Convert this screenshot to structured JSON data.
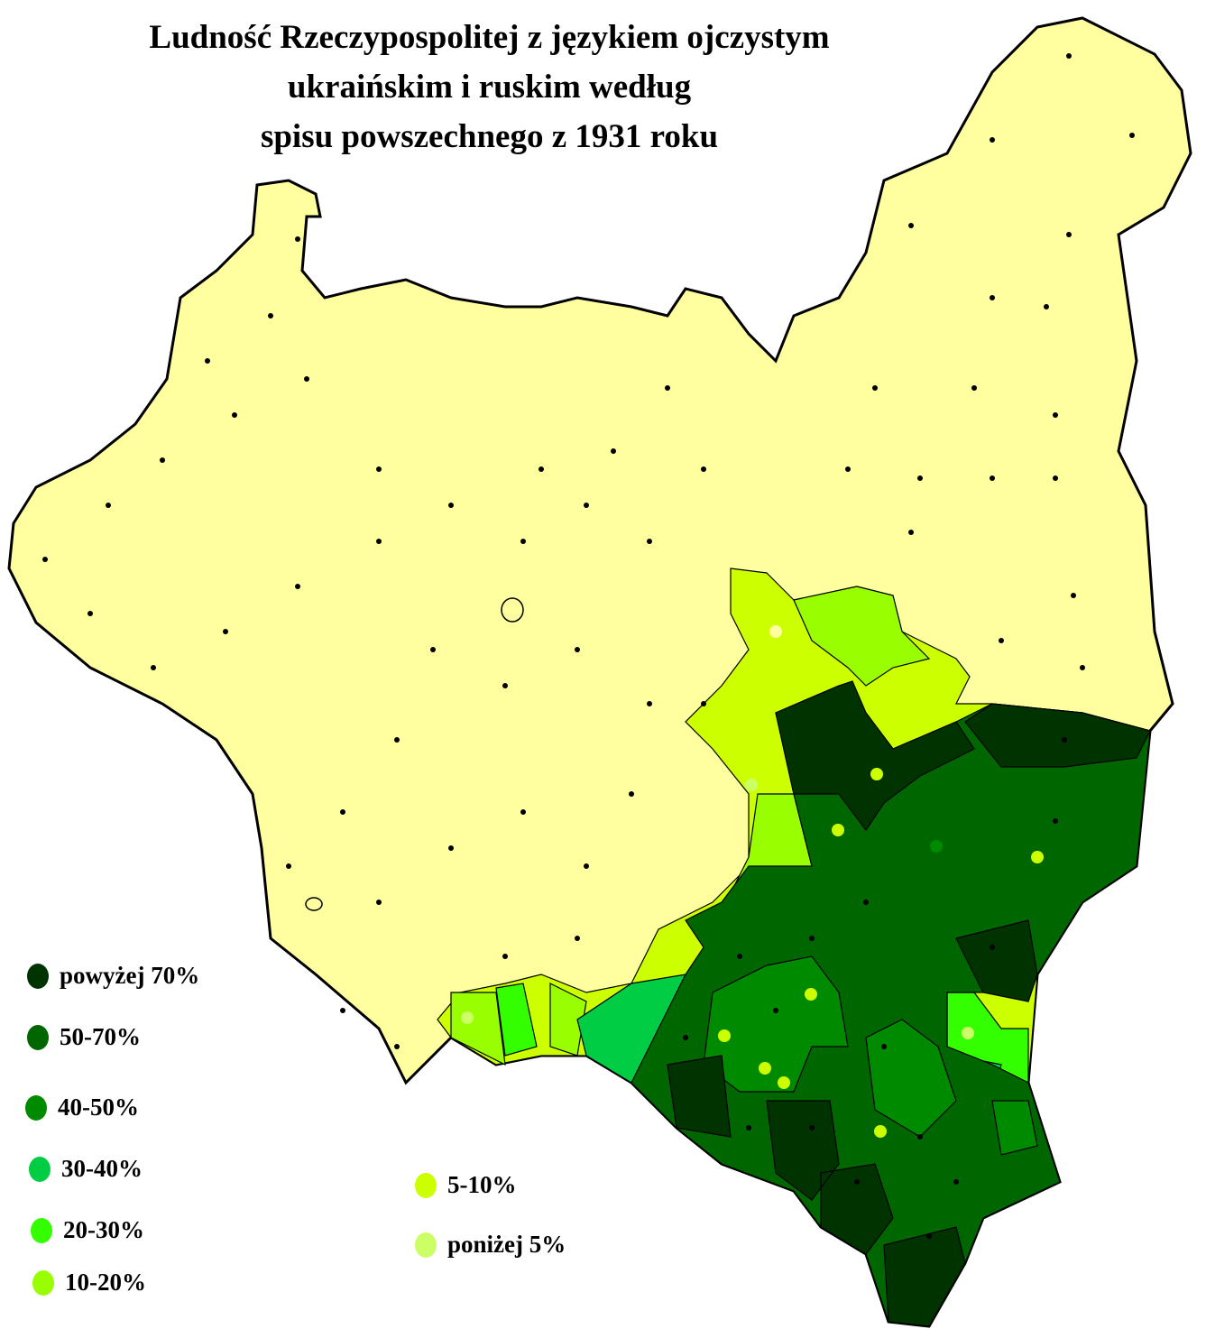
{
  "title": {
    "line1": "Ludność Rzeczypospolitej z językiem ojczystym",
    "line2": "ukraińskim i ruskim według",
    "line3": "spisu powszechnego z 1931 roku"
  },
  "colors": {
    "base": "#ffff9f",
    "over70": "#003300",
    "p50_70": "#006600",
    "p40_50": "#008a00",
    "p30_40": "#00cc44",
    "p20_30": "#33ff00",
    "p10_20": "#99ff00",
    "p5_10": "#ccff00",
    "under5": "#ccff66"
  },
  "legend": [
    {
      "label": "powyżej 70%",
      "color": "#003300"
    },
    {
      "label": "50-70%",
      "color": "#006600"
    },
    {
      "label": "40-50%",
      "color": "#008a00"
    },
    {
      "label": "30-40%",
      "color": "#00cc44"
    },
    {
      "label": "20-30%",
      "color": "#33ff00"
    },
    {
      "label": "10-20%",
      "color": "#99ff00"
    },
    {
      "label": "5-10%",
      "color": "#ccff00"
    },
    {
      "label": "poniżej 5%",
      "color": "#ccff66"
    }
  ]
}
